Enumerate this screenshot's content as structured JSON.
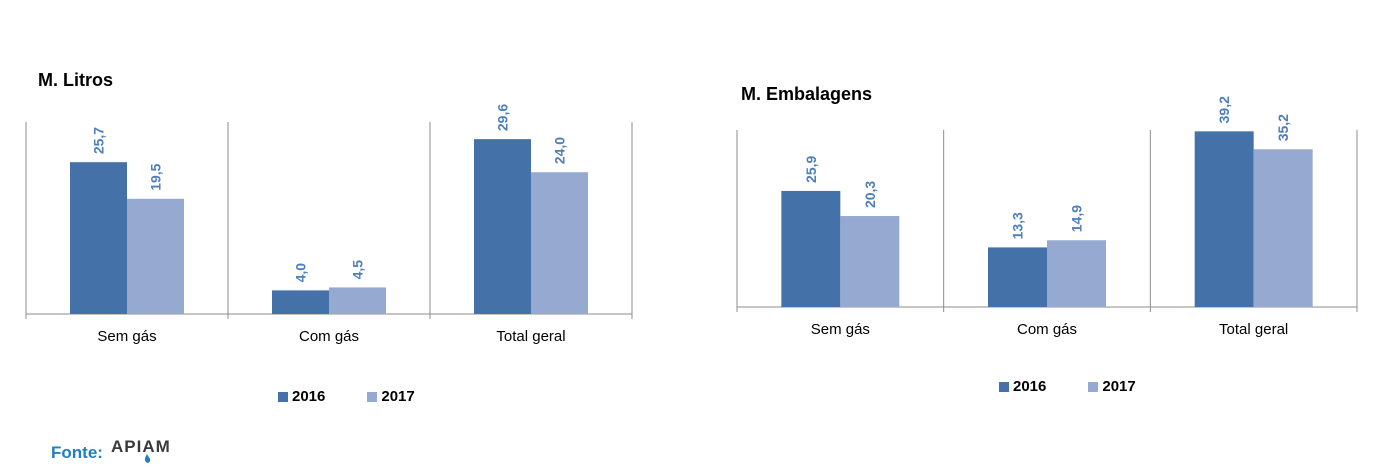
{
  "chart_data": [
    {
      "type": "bar",
      "title": "M. Litros",
      "categories": [
        "Sem gás",
        "Com gás",
        "Total geral"
      ],
      "series": [
        {
          "name": "2016",
          "values": [
            25.7,
            4.0,
            29.6
          ],
          "color": "#4472a8"
        },
        {
          "name": "2017",
          "values": [
            19.5,
            4.5,
            24.0
          ],
          "color": "#95a9d1"
        }
      ],
      "data_labels": [
        [
          "25,7",
          "4,0",
          "29,6"
        ],
        [
          "19,5",
          "4,5",
          "24,0"
        ]
      ],
      "ylim": [
        0,
        32.5
      ],
      "legend_position": "bottom",
      "grid": false
    },
    {
      "type": "bar",
      "title": "M. Embalagens",
      "categories": [
        "Sem gás",
        "Com gás",
        "Total geral"
      ],
      "series": [
        {
          "name": "2016",
          "values": [
            25.9,
            13.3,
            39.2
          ],
          "color": "#4472a8"
        },
        {
          "name": "2017",
          "values": [
            20.3,
            14.9,
            35.2
          ],
          "color": "#95a9d1"
        }
      ],
      "data_labels": [
        [
          "25,9",
          "13,3",
          "39,2"
        ],
        [
          "20,3",
          "14,9",
          "35,2"
        ]
      ],
      "ylim": [
        0,
        39.5
      ],
      "legend_position": "bottom",
      "grid": false
    }
  ],
  "source": {
    "label": "Fonte:",
    "logo_text": "APIAM"
  }
}
